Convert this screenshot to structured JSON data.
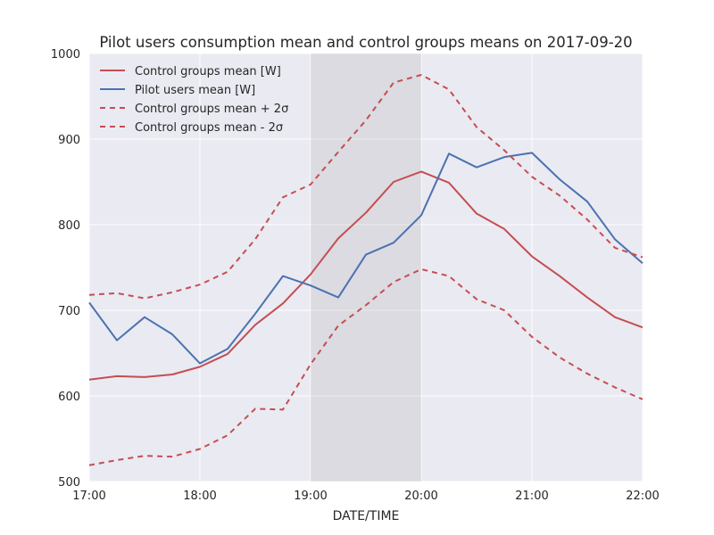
{
  "chart_data": {
    "type": "line",
    "title": "Pilot users consumption mean and control groups means on 2017-09-20",
    "xlabel": "DATE/TIME",
    "ylabel": "",
    "x_ticks": [
      "17:00",
      "18:00",
      "19:00",
      "20:00",
      "21:00",
      "22:00"
    ],
    "y_ticks": [
      500,
      600,
      700,
      800,
      900,
      1000
    ],
    "xlim": [
      "17:00",
      "22:00"
    ],
    "ylim": [
      500,
      1000
    ],
    "x": [
      "17:00",
      "17:15",
      "17:30",
      "17:45",
      "18:00",
      "18:15",
      "18:30",
      "18:45",
      "19:00",
      "19:15",
      "19:30",
      "19:45",
      "20:00",
      "20:15",
      "20:30",
      "20:45",
      "21:00",
      "21:15",
      "21:30",
      "21:45",
      "22:00"
    ],
    "highlight_span": [
      "19:00",
      "20:00"
    ],
    "grid": true,
    "legend_position": "top-left",
    "series": [
      {
        "name": "Control groups mean [W]",
        "color": "#c44e52",
        "style": "solid",
        "values": [
          619,
          623,
          622,
          625,
          634,
          649,
          683,
          708,
          742,
          784,
          814,
          850,
          862,
          849,
          813,
          795,
          763,
          740,
          715,
          692,
          680
        ]
      },
      {
        "name": "Pilot users mean [W]",
        "color": "#4c72b0",
        "style": "solid",
        "values": [
          709,
          665,
          692,
          672,
          638,
          655,
          696,
          740,
          729,
          715,
          765,
          779,
          811,
          883,
          867,
          879,
          884,
          853,
          827,
          783,
          755
        ]
      },
      {
        "name": "Control groups mean + 2σ",
        "color": "#c44e52",
        "style": "dashed",
        "values": [
          718,
          720,
          714,
          721,
          730,
          745,
          783,
          832,
          847,
          885,
          922,
          966,
          975,
          958,
          914,
          887,
          856,
          834,
          806,
          773,
          762
        ]
      },
      {
        "name": "Control groups mean - 2σ",
        "color": "#c44e52",
        "style": "dashed",
        "values": [
          519,
          525,
          530,
          529,
          538,
          554,
          585,
          584,
          637,
          682,
          706,
          733,
          748,
          740,
          713,
          700,
          669,
          645,
          626,
          610,
          596
        ]
      }
    ]
  }
}
